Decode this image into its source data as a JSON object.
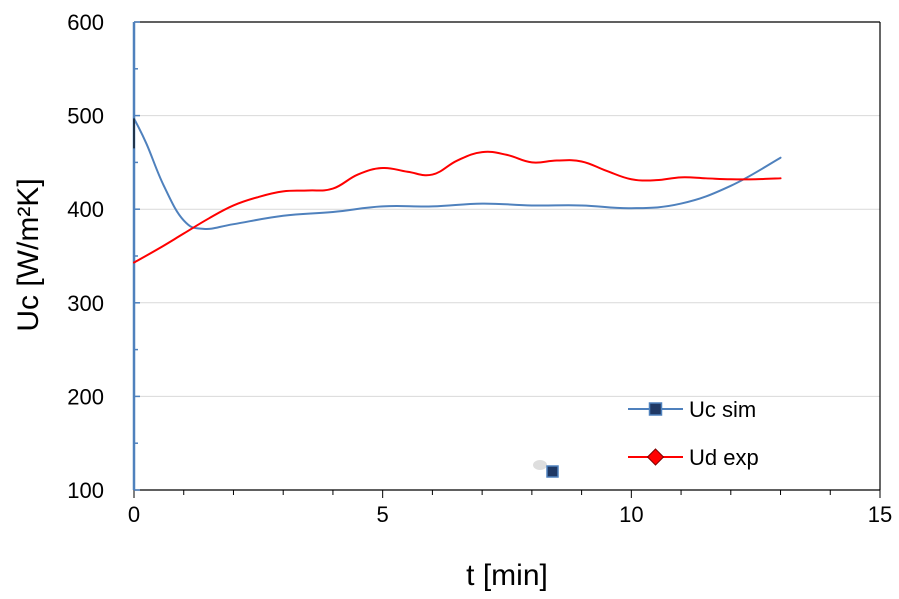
{
  "chart_data": {
    "type": "line",
    "title": "",
    "xlabel": "t [min]",
    "ylabel": "Uc [W/m²K]",
    "xlim": [
      0,
      15
    ],
    "ylim": [
      100,
      600
    ],
    "x_ticks": [
      0,
      5,
      10,
      15
    ],
    "y_ticks": [
      100,
      200,
      300,
      400,
      500,
      600
    ],
    "grid": true,
    "legend_position": "bottom-right",
    "series": [
      {
        "name": "Uc sim",
        "color": "#4F81BD",
        "marker": "square",
        "x": [
          0,
          0.25,
          0.6,
          1.0,
          1.4,
          2.0,
          3.0,
          4.0,
          5.0,
          6.0,
          7.0,
          8.0,
          9.0,
          10.0,
          11.0,
          12.0,
          13.0
        ],
        "y": [
          497,
          470,
          425,
          388,
          379,
          384,
          393,
          397,
          403,
          403,
          406,
          404,
          404,
          401,
          406,
          425,
          455
        ]
      },
      {
        "name": "Ud exp",
        "color": "#FF0000",
        "marker": "diamond",
        "x": [
          0,
          0.5,
          1.0,
          1.5,
          2.0,
          2.5,
          3.0,
          3.5,
          4.0,
          4.5,
          5.0,
          5.5,
          6.0,
          6.5,
          7.0,
          7.5,
          8.0,
          8.5,
          9.0,
          9.5,
          10.0,
          10.5,
          11.0,
          11.5,
          12.0,
          12.5,
          13.0
        ],
        "y": [
          343,
          358,
          374,
          390,
          404,
          413,
          419,
          420,
          422,
          437,
          444,
          440,
          437,
          452,
          461,
          458,
          450,
          452,
          451,
          441,
          432,
          431,
          434,
          433,
          432,
          432,
          433
        ]
      }
    ]
  }
}
